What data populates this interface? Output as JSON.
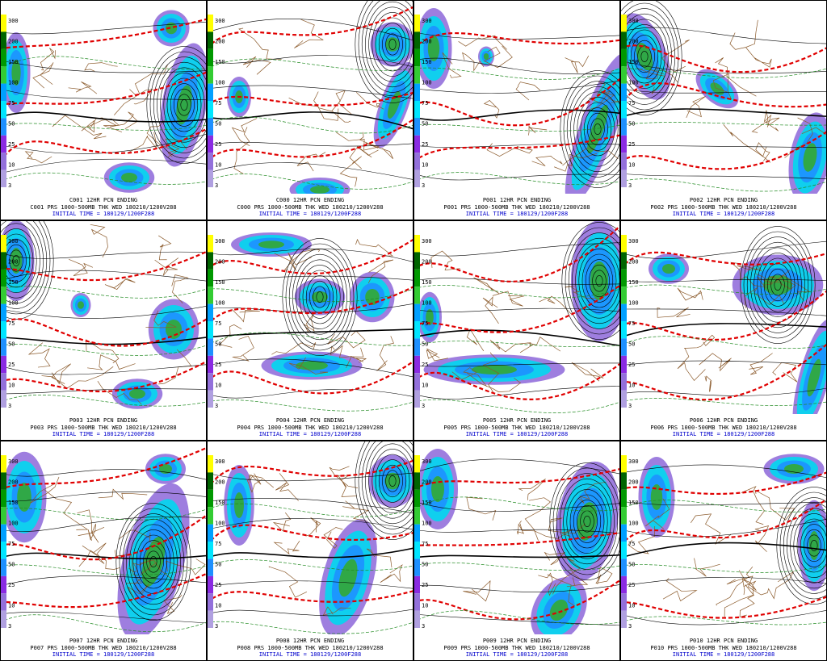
{
  "colorbar_labels": [
    "300",
    "200",
    "150",
    "100",
    "75",
    "50",
    "25",
    "10",
    "3"
  ],
  "panels": [
    {
      "title": "C001 12HR PCN ENDING",
      "subtitle": "C001 PRS 1000-500MB THK WED 180210/1200V288",
      "initial": "INITIAL TIME = 180129/1200F288"
    },
    {
      "title": "C000 12HR PCN ENDING",
      "subtitle": "C000 PRS 1000-500MB THK WED 180210/1200V288",
      "initial": "INITIAL TIME = 180129/1200F288"
    },
    {
      "title": "P001 12HR PCN ENDING",
      "subtitle": "P001 PRS 1000-500MB THK WED 180210/1200V288",
      "initial": "INITIAL TIME = 180129/1200F288"
    },
    {
      "title": "P002 12HR PCN ENDING",
      "subtitle": "P002 PRS 1000-500MB THK WED 180210/1200V288",
      "initial": "INITIAL TIME = 180129/1200F288"
    },
    {
      "title": "P003 12HR PCN ENDING",
      "subtitle": "P003 PRS 1000-500MB THK WED 180210/1200V288",
      "initial": "INITIAL TIME = 180129/1200F288"
    },
    {
      "title": "P004 12HR PCN ENDING",
      "subtitle": "P004 PRS 1000-500MB THK WED 180210/1200V288",
      "initial": "INITIAL TIME = 180129/1200F288"
    },
    {
      "title": "P005 12HR PCN ENDING",
      "subtitle": "P005 PRS 1000-500MB THK WED 180210/1200V288",
      "initial": "INITIAL TIME = 180129/1200F288"
    },
    {
      "title": "P006 12HR PCN ENDING",
      "subtitle": "P006 PRS 1000-500MB THK WED 180210/1200V288",
      "initial": "INITIAL TIME = 180129/1200F288"
    },
    {
      "title": "P007 12HR PCN ENDING",
      "subtitle": "P007 PRS 1000-500MB THK WED 180210/1200V288",
      "initial": "INITIAL TIME = 180129/1200F288"
    },
    {
      "title": "P008 12HR PCN ENDING",
      "subtitle": "P008 PRS 1000-500MB THK WED 180210/1200V288",
      "initial": "INITIAL TIME = 180129/1200F288"
    },
    {
      "title": "P009 12HR PCN ENDING",
      "subtitle": "P009 PRS 1000-500MB THK WED 180210/1200V288",
      "initial": "INITIAL TIME = 180129/1200F288"
    },
    {
      "title": "P010 12HR PCN ENDING",
      "subtitle": "P010 PRS 1000-500MB THK WED 180210/1200V288",
      "initial": "INITIAL TIME = 180129/1200F288"
    }
  ]
}
